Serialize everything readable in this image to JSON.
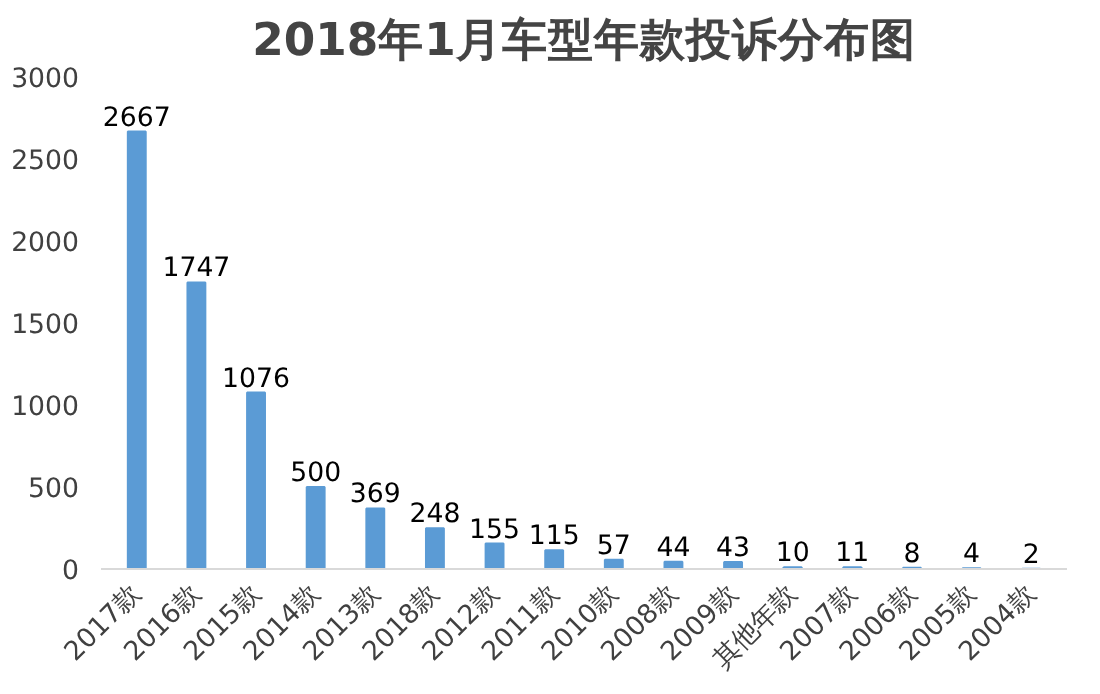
{
  "chart_data": {
    "type": "bar",
    "title": "2018年1月车型年款投诉分布图",
    "categories": [
      "2017款",
      "2016款",
      "2015款",
      "2014款",
      "2013款",
      "2018款",
      "2012款",
      "2011款",
      "2010款",
      "2008款",
      "2009款",
      "其他年款",
      "2007款",
      "2006款",
      "2005款",
      "2004款"
    ],
    "values": [
      2667,
      1747,
      1076,
      500,
      369,
      248,
      155,
      115,
      57,
      44,
      43,
      10,
      11,
      8,
      4,
      2
    ],
    "color": "#5b9bd5",
    "ylim": [
      0,
      3000
    ],
    "yticks": [
      0,
      500,
      1000,
      1500,
      2000,
      2500,
      3000
    ],
    "grid": false,
    "data_labels": true
  }
}
